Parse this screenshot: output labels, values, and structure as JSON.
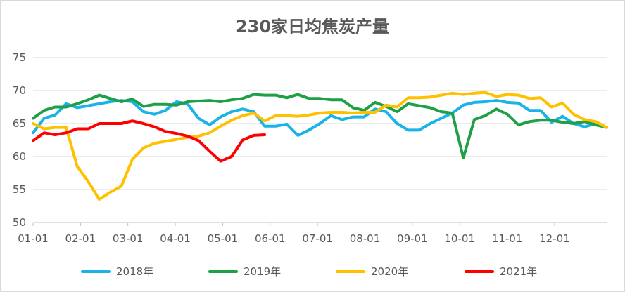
{
  "chart_data": {
    "type": "line",
    "title": "230家日均焦炭产量",
    "xlabel": "",
    "ylabel": "",
    "ylim": [
      50,
      75
    ],
    "yticks": [
      50,
      55,
      60,
      65,
      70,
      75
    ],
    "xticks": [
      "01-01",
      "02-01",
      "03-01",
      "04-01",
      "05-01",
      "06-01",
      "07-01",
      "08-01",
      "09-01",
      "10-01",
      "11-01",
      "12-01"
    ],
    "x_unit": "week index (0-52)",
    "grid": "horizontal",
    "legend_position": "bottom",
    "series": [
      {
        "name": "2018年",
        "color": "#1AB3E8",
        "values": [
          63.6,
          65.8,
          66.3,
          68.0,
          67.4,
          67.7,
          68.0,
          68.3,
          68.5,
          68.3,
          66.8,
          66.4,
          67.0,
          68.3,
          68.0,
          65.8,
          64.8,
          66.0,
          66.8,
          67.2,
          66.8,
          64.6,
          64.6,
          64.9,
          63.2,
          64.0,
          65.0,
          66.2,
          65.6,
          66.0,
          66.0,
          67.2,
          66.8,
          65.0,
          64.0,
          64.0,
          65.0,
          65.8,
          66.6,
          67.8,
          68.2,
          68.3,
          68.5,
          68.2,
          68.1,
          67.0,
          67.0,
          65.2,
          66.1,
          65.0,
          64.5,
          65.0,
          64.4
        ]
      },
      {
        "name": "2019年",
        "color": "#1FA047",
        "values": [
          65.8,
          67.0,
          67.5,
          67.5,
          68.0,
          68.6,
          69.3,
          68.8,
          68.3,
          68.7,
          67.6,
          67.9,
          67.9,
          67.8,
          68.3,
          68.4,
          68.5,
          68.3,
          68.6,
          68.8,
          69.4,
          69.3,
          69.3,
          68.9,
          69.4,
          68.8,
          68.8,
          68.6,
          68.6,
          67.4,
          67.0,
          68.2,
          67.6,
          66.8,
          68.0,
          67.7,
          67.4,
          66.8,
          66.6,
          59.8,
          65.6,
          66.2,
          67.2,
          66.4,
          64.8,
          65.3,
          65.5,
          65.5,
          65.2,
          65.0,
          65.3,
          64.8,
          64.4
        ]
      },
      {
        "name": "2020年",
        "color": "#FFC000",
        "values": [
          65.0,
          64.2,
          64.4,
          64.4,
          58.5,
          56.2,
          53.5,
          54.6,
          55.5,
          59.6,
          61.3,
          62.0,
          62.3,
          62.6,
          62.9,
          63.1,
          63.6,
          64.6,
          65.5,
          66.2,
          66.6,
          65.4,
          66.2,
          66.2,
          66.1,
          66.3,
          66.6,
          66.7,
          66.7,
          66.6,
          66.7,
          66.7,
          67.8,
          67.5,
          68.9,
          68.9,
          69.0,
          69.3,
          69.6,
          69.4,
          69.6,
          69.7,
          69.1,
          69.4,
          69.3,
          68.8,
          68.9,
          67.5,
          68.1,
          66.4,
          65.6,
          65.3,
          64.4
        ]
      },
      {
        "name": "2021年",
        "color": "#FF0000",
        "values": [
          62.4,
          63.6,
          63.3,
          63.6,
          64.2,
          64.2,
          65.0,
          65.0,
          65.0,
          65.4,
          65.0,
          64.5,
          63.8,
          63.5,
          63.1,
          62.4,
          60.8,
          59.3,
          60.0,
          62.5,
          63.2,
          63.3
        ]
      }
    ]
  }
}
